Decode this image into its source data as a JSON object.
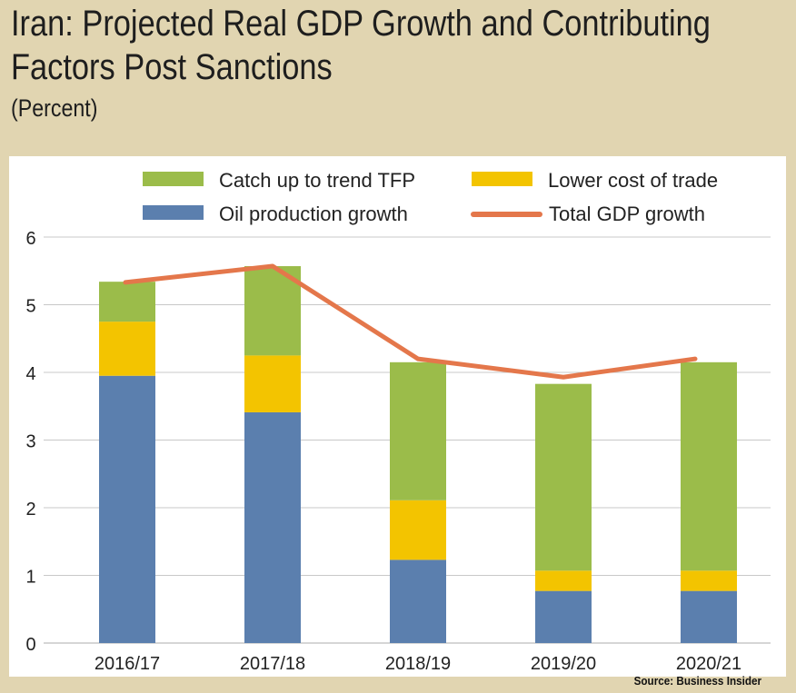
{
  "header": {
    "title_line1": "Iran: Projected Real GDP Growth and Contributing",
    "title_line2": "Factors Post Sanctions",
    "subtitle": "(Percent)"
  },
  "source": "Source: Business Insider",
  "colors": {
    "oil": "#5b7fae",
    "trade": "#f3c400",
    "tfp": "#9bbc4a",
    "total": "#e4774b",
    "grid": "#c8c8c8"
  },
  "chart_data": {
    "type": "bar",
    "stacked": true,
    "title": "Iran: Projected Real GDP Growth and Contributing Factors Post Sanctions",
    "subtitle": "(Percent)",
    "xlabel": "",
    "ylabel": "",
    "ylim": [
      0,
      6
    ],
    "yticks": [
      0,
      1,
      2,
      3,
      4,
      5,
      6
    ],
    "grid": true,
    "legend_position": "top",
    "categories": [
      "2016/17",
      "2017/18",
      "2018/19",
      "2019/20",
      "2020/21"
    ],
    "series": [
      {
        "name": "Oil production growth",
        "type": "bar",
        "color_key": "oil",
        "values": [
          3.95,
          3.41,
          1.23,
          0.77,
          0.77
        ]
      },
      {
        "name": "Lower cost of trade",
        "type": "bar",
        "color_key": "trade",
        "values": [
          0.8,
          0.84,
          0.88,
          0.3,
          0.3
        ]
      },
      {
        "name": "Catch up to trend TFP",
        "type": "bar",
        "color_key": "tfp",
        "values": [
          0.59,
          1.32,
          2.04,
          2.76,
          3.08
        ]
      },
      {
        "name": "Total GDP growth",
        "type": "line",
        "color_key": "total",
        "values": [
          5.33,
          5.57,
          4.2,
          3.93,
          4.2
        ]
      }
    ],
    "legend": [
      {
        "label": "Catch up to trend TFP",
        "color_key": "tfp",
        "kind": "box"
      },
      {
        "label": "Lower cost of trade",
        "color_key": "trade",
        "kind": "box"
      },
      {
        "label": "Oil production growth",
        "color_key": "oil",
        "kind": "box"
      },
      {
        "label": "Total GDP growth",
        "color_key": "total",
        "kind": "line"
      }
    ]
  }
}
